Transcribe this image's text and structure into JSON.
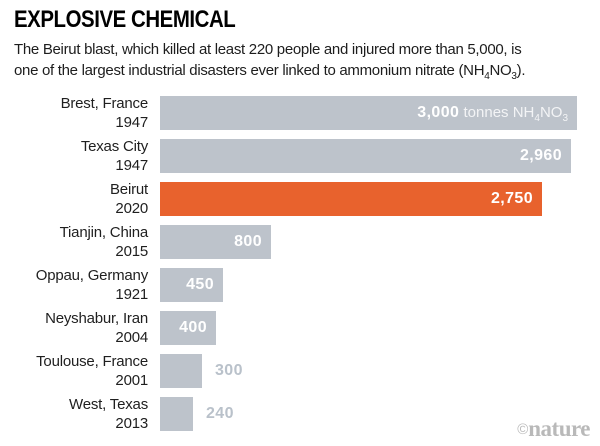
{
  "header": {
    "title": "EXPLOSIVE CHEMICAL",
    "subtitle_line1": "The Beirut blast, which killed at least 220 people and injured more than 5,000, is",
    "subtitle_line2_pre": "one of the largest industrial disasters ever linked to ammonium nitrate (NH",
    "subtitle_sub1": "4",
    "subtitle_line2_mid": "NO",
    "subtitle_sub2": "3",
    "subtitle_line2_end": ")."
  },
  "chart_data": {
    "type": "bar",
    "orientation": "horizontal",
    "title": "EXPLOSIVE CHEMICAL",
    "unit_label": "tonnes NH4NO3",
    "xlim": [
      0,
      3000
    ],
    "grid": false,
    "legend": false,
    "categories": [
      "Brest, France 1947",
      "Texas City 1947",
      "Beirut 2020",
      "Tianjin, China 2015",
      "Oppau, Germany 1921",
      "Neyshabur, Iran 2004",
      "Toulouse, France 2001",
      "West, Texas 2013"
    ],
    "values": [
      3000,
      2960,
      2750,
      800,
      450,
      400,
      300,
      240
    ],
    "rows": [
      {
        "place": "Brest, France",
        "year": "1947",
        "value": 3000,
        "value_label": "3,000",
        "highlight": false,
        "label_inside": true
      },
      {
        "place": "Texas City",
        "year": "1947",
        "value": 2960,
        "value_label": "2,960",
        "highlight": false,
        "label_inside": true
      },
      {
        "place": "Beirut",
        "year": "2020",
        "value": 2750,
        "value_label": "2,750",
        "highlight": true,
        "label_inside": true
      },
      {
        "place": "Tianjin, China",
        "year": "2015",
        "value": 800,
        "value_label": "800",
        "highlight": false,
        "label_inside": true
      },
      {
        "place": "Oppau, Germany",
        "year": "1921",
        "value": 450,
        "value_label": "450",
        "highlight": false,
        "label_inside": true
      },
      {
        "place": "Neyshabur, Iran",
        "year": "2004",
        "value": 400,
        "value_label": "400",
        "highlight": false,
        "label_inside": true
      },
      {
        "place": "Toulouse, France",
        "year": "2001",
        "value": 300,
        "value_label": "300",
        "highlight": false,
        "label_inside": false
      },
      {
        "place": "West, Texas",
        "year": "2013",
        "value": 240,
        "value_label": "240",
        "highlight": false,
        "label_inside": false
      }
    ],
    "unit_pre": " tonnes NH",
    "unit_sub1": "4",
    "unit_mid": "NO",
    "unit_sub2": "3"
  },
  "colors": {
    "bar": "#bdc3cb",
    "highlight": "#e8622d",
    "value_inside": "#ffffff",
    "value_outside": "#b9c1ca",
    "text": "#1f1f1f",
    "logo": "#b9b9b9"
  },
  "footer": {
    "credit_symbol": "©",
    "credit_name": "nature"
  }
}
